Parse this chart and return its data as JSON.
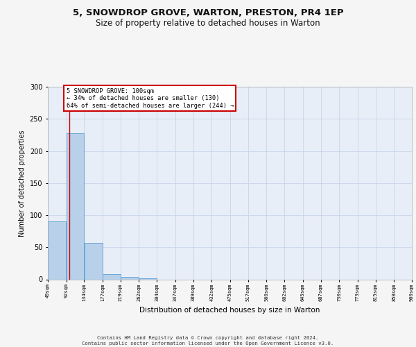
{
  "title_line1": "5, SNOWDROP GROVE, WARTON, PRESTON, PR4 1EP",
  "title_line2": "Size of property relative to detached houses in Warton",
  "xlabel": "Distribution of detached houses by size in Warton",
  "ylabel": "Number of detached properties",
  "bin_edges": [
    49,
    92,
    134,
    177,
    219,
    262,
    304,
    347,
    389,
    432,
    475,
    517,
    560,
    602,
    645,
    687,
    730,
    773,
    815,
    858,
    900
  ],
  "bar_heights": [
    90,
    228,
    57,
    8,
    4,
    2,
    0,
    0,
    0,
    0,
    0,
    0,
    0,
    0,
    0,
    0,
    0,
    0,
    0,
    0
  ],
  "bar_color": "#b8d0ea",
  "bar_edge_color": "#5a9fd4",
  "grid_color": "#c8d4e8",
  "property_line_x": 100,
  "property_line_color": "#cc0000",
  "ylim": [
    0,
    300
  ],
  "yticks": [
    0,
    50,
    100,
    150,
    200,
    250,
    300
  ],
  "annotation_text": "5 SNOWDROP GROVE: 100sqm\n← 34% of detached houses are smaller (130)\n64% of semi-detached houses are larger (244) →",
  "annotation_box_color": "#ffffff",
  "annotation_box_edge_color": "#cc0000",
  "footer_line1": "Contains HM Land Registry data © Crown copyright and database right 2024.",
  "footer_line2": "Contains public sector information licensed under the Open Government Licence v3.0.",
  "plot_bg_color": "#e8eef8",
  "fig_bg_color": "#f5f5f5",
  "title_fontsize": 9.5,
  "subtitle_fontsize": 8.5,
  "tick_labels": [
    "49sqm",
    "92sqm",
    "134sqm",
    "177sqm",
    "219sqm",
    "262sqm",
    "304sqm",
    "347sqm",
    "389sqm",
    "432sqm",
    "475sqm",
    "517sqm",
    "560sqm",
    "602sqm",
    "645sqm",
    "687sqm",
    "730sqm",
    "773sqm",
    "815sqm",
    "858sqm",
    "900sqm"
  ]
}
